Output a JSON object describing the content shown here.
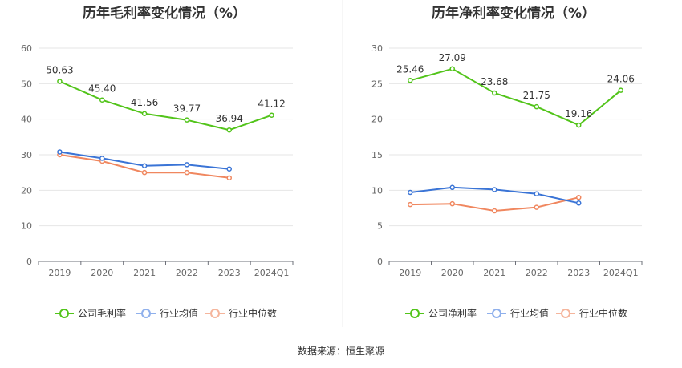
{
  "source_note": "数据来源：恒生聚源",
  "chart_data": [
    {
      "type": "line",
      "title": "历年毛利率变化情况（%）",
      "categories": [
        "2019",
        "2020",
        "2021",
        "2022",
        "2023",
        "2024Q1"
      ],
      "yticks": [
        "0",
        "10",
        "20",
        "30",
        "40",
        "50",
        "60"
      ],
      "ylim": [
        0,
        60
      ],
      "grid": true,
      "legend_position": "bottom",
      "series": [
        {
          "name": "公司毛利率",
          "color": "#52c41a",
          "labels": true,
          "values": [
            50.63,
            45.4,
            41.56,
            39.77,
            36.94,
            41.12
          ],
          "value_labels": [
            "50.63",
            "45.40",
            "41.56",
            "39.77",
            "36.94",
            "41.12"
          ]
        },
        {
          "name": "行业均值",
          "color": "#3a74d6",
          "labels": false,
          "values": [
            30.8,
            29.0,
            26.9,
            27.2,
            26.0,
            null
          ]
        },
        {
          "name": "行业中位数",
          "color": "#f0875f",
          "labels": false,
          "values": [
            30.0,
            28.2,
            25.0,
            25.0,
            23.5,
            null
          ]
        }
      ]
    },
    {
      "type": "line",
      "title": "历年净利率变化情况（%）",
      "categories": [
        "2019",
        "2020",
        "2021",
        "2022",
        "2023",
        "2024Q1"
      ],
      "yticks": [
        "0",
        "5",
        "10",
        "15",
        "20",
        "25",
        "30"
      ],
      "ylim": [
        0,
        30
      ],
      "grid": true,
      "legend_position": "bottom",
      "series": [
        {
          "name": "公司净利率",
          "color": "#52c41a",
          "labels": true,
          "values": [
            25.46,
            27.09,
            23.68,
            21.75,
            19.16,
            24.06
          ],
          "value_labels": [
            "25.46",
            "27.09",
            "23.68",
            "21.75",
            "19.16",
            "24.06"
          ]
        },
        {
          "name": "行业均值",
          "color": "#3a74d6",
          "labels": false,
          "values": [
            9.7,
            10.4,
            10.1,
            9.5,
            8.2,
            null
          ]
        },
        {
          "name": "行业中位数",
          "color": "#f0875f",
          "labels": false,
          "values": [
            8.0,
            8.1,
            7.1,
            7.6,
            9.0,
            null
          ]
        }
      ]
    }
  ]
}
